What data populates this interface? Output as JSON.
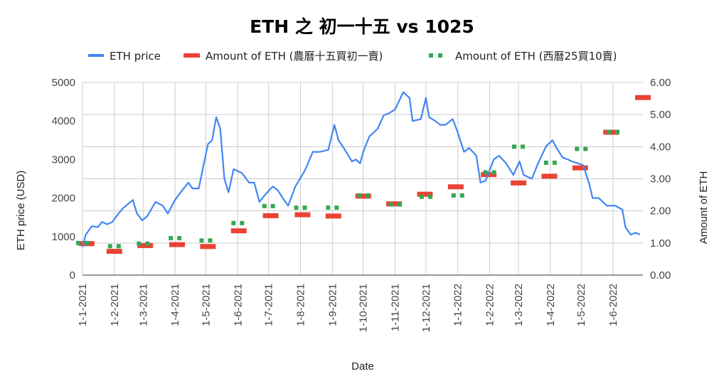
{
  "chart_data": {
    "type": "line",
    "title": "ETH 之 初一十五 vs 1025",
    "xlabel": "Date",
    "ylabel_left": "ETH price (USD)",
    "ylabel_right": "Amount of ETH",
    "ylim_left": [
      0,
      5000
    ],
    "ylim_right": [
      0,
      6
    ],
    "left_ticks": [
      "0",
      "1000",
      "2000",
      "3000",
      "4000",
      "5000"
    ],
    "right_ticks": [
      "0.00",
      "1.00",
      "2.00",
      "3.00",
      "4.00",
      "5.00",
      "6.00"
    ],
    "x_ticks": [
      "1-1-2021",
      "1-2-2021",
      "1-3-2021",
      "1-4-2021",
      "1-5-2021",
      "1-6-2021",
      "1-7-2021",
      "1-8-2021",
      "1-9-2021",
      "1-10-2021",
      "1-11-2021",
      "1-12-2021",
      "1-1-2022",
      "1-2-2022",
      "1-3-2022",
      "1-4-2022",
      "1-5-2022",
      "1-6-2022"
    ],
    "x_range": [
      "2021-01-01",
      "2022-06-30"
    ],
    "grid": true,
    "legend_position": "top",
    "series": [
      {
        "name": "ETH price",
        "type": "line",
        "axis": "left",
        "color": "#4285f4",
        "points": [
          [
            "2021-01-01",
            730
          ],
          [
            "2021-01-04",
            1040
          ],
          [
            "2021-01-10",
            1270
          ],
          [
            "2021-01-16",
            1250
          ],
          [
            "2021-01-20",
            1380
          ],
          [
            "2021-01-25",
            1320
          ],
          [
            "2021-01-30",
            1380
          ],
          [
            "2021-02-05",
            1600
          ],
          [
            "2021-02-10",
            1750
          ],
          [
            "2021-02-19",
            1950
          ],
          [
            "2021-02-23",
            1600
          ],
          [
            "2021-02-28",
            1420
          ],
          [
            "2021-03-05",
            1530
          ],
          [
            "2021-03-13",
            1900
          ],
          [
            "2021-03-20",
            1800
          ],
          [
            "2021-03-25",
            1600
          ],
          [
            "2021-04-01",
            1950
          ],
          [
            "2021-04-05",
            2100
          ],
          [
            "2021-04-14",
            2400
          ],
          [
            "2021-04-18",
            2250
          ],
          [
            "2021-04-24",
            2250
          ],
          [
            "2021-05-03",
            3400
          ],
          [
            "2021-05-07",
            3500
          ],
          [
            "2021-05-11",
            4100
          ],
          [
            "2021-05-15",
            3800
          ],
          [
            "2021-05-19",
            2500
          ],
          [
            "2021-05-23",
            2150
          ],
          [
            "2021-05-28",
            2750
          ],
          [
            "2021-06-05",
            2650
          ],
          [
            "2021-06-12",
            2400
          ],
          [
            "2021-06-17",
            2400
          ],
          [
            "2021-06-22",
            1900
          ],
          [
            "2021-06-28",
            2100
          ],
          [
            "2021-07-05",
            2300
          ],
          [
            "2021-07-10",
            2200
          ],
          [
            "2021-07-16",
            1950
          ],
          [
            "2021-07-20",
            1800
          ],
          [
            "2021-07-27",
            2300
          ],
          [
            "2021-08-05",
            2700
          ],
          [
            "2021-08-13",
            3200
          ],
          [
            "2021-08-20",
            3200
          ],
          [
            "2021-08-28",
            3250
          ],
          [
            "2021-09-03",
            3900
          ],
          [
            "2021-09-07",
            3500
          ],
          [
            "2021-09-12",
            3300
          ],
          [
            "2021-09-20",
            2950
          ],
          [
            "2021-09-24",
            3000
          ],
          [
            "2021-09-28",
            2900
          ],
          [
            "2021-10-01",
            3200
          ],
          [
            "2021-10-07",
            3600
          ],
          [
            "2021-10-15",
            3800
          ],
          [
            "2021-10-21",
            4150
          ],
          [
            "2021-10-26",
            4200
          ],
          [
            "2021-11-01",
            4300
          ],
          [
            "2021-11-09",
            4750
          ],
          [
            "2021-11-15",
            4600
          ],
          [
            "2021-11-18",
            4000
          ],
          [
            "2021-11-26",
            4050
          ],
          [
            "2021-12-01",
            4600
          ],
          [
            "2021-12-04",
            4100
          ],
          [
            "2021-12-10",
            4000
          ],
          [
            "2021-12-15",
            3900
          ],
          [
            "2021-12-20",
            3900
          ],
          [
            "2021-12-27",
            4050
          ],
          [
            "2022-01-01",
            3700
          ],
          [
            "2022-01-07",
            3200
          ],
          [
            "2022-01-12",
            3300
          ],
          [
            "2022-01-19",
            3100
          ],
          [
            "2022-01-23",
            2400
          ],
          [
            "2022-01-28",
            2450
          ],
          [
            "2022-02-05",
            3000
          ],
          [
            "2022-02-10",
            3100
          ],
          [
            "2022-02-17",
            2900
          ],
          [
            "2022-02-24",
            2600
          ],
          [
            "2022-03-02",
            2950
          ],
          [
            "2022-03-06",
            2600
          ],
          [
            "2022-03-14",
            2500
          ],
          [
            "2022-03-20",
            2900
          ],
          [
            "2022-03-28",
            3350
          ],
          [
            "2022-04-03",
            3500
          ],
          [
            "2022-04-07",
            3300
          ],
          [
            "2022-04-13",
            3050
          ],
          [
            "2022-04-18",
            3000
          ],
          [
            "2022-04-22",
            2950
          ],
          [
            "2022-04-28",
            2900
          ],
          [
            "2022-05-03",
            2850
          ],
          [
            "2022-05-09",
            2350
          ],
          [
            "2022-05-12",
            2000
          ],
          [
            "2022-05-18",
            2000
          ],
          [
            "2022-05-26",
            1800
          ],
          [
            "2022-06-03",
            1800
          ],
          [
            "2022-06-10",
            1700
          ],
          [
            "2022-06-13",
            1250
          ],
          [
            "2022-06-18",
            1050
          ],
          [
            "2022-06-23",
            1100
          ],
          [
            "2022-06-27",
            1050
          ]
        ]
      },
      {
        "name": "Amount of ETH (農曆十五買初一賣)",
        "type": "dash",
        "axis": "right",
        "color": "#ea4335",
        "points": [
          [
            "2021-01-05",
            0.98
          ],
          [
            "2021-02-01",
            0.74
          ],
          [
            "2021-03-03",
            0.92
          ],
          [
            "2021-04-03",
            0.95
          ],
          [
            "2021-05-03",
            0.89
          ],
          [
            "2021-06-02",
            1.38
          ],
          [
            "2021-07-03",
            1.85
          ],
          [
            "2021-08-03",
            1.88
          ],
          [
            "2021-09-02",
            1.84
          ],
          [
            "2021-10-01",
            2.46
          ],
          [
            "2021-10-31",
            2.22
          ],
          [
            "2021-11-30",
            2.52
          ],
          [
            "2021-12-30",
            2.75
          ],
          [
            "2022-01-31",
            3.13
          ],
          [
            "2022-03-01",
            2.87
          ],
          [
            "2022-03-31",
            3.08
          ],
          [
            "2022-04-30",
            3.34
          ],
          [
            "2022-05-30",
            4.45
          ],
          [
            "2022-06-30",
            5.53
          ]
        ]
      },
      {
        "name": "Amount of ETH (西曆25買10賣)",
        "type": "dots",
        "axis": "right",
        "color": "#34a853",
        "points": [
          [
            "2021-01-01",
            1.0
          ],
          [
            "2021-02-01",
            0.9
          ],
          [
            "2021-03-01",
            0.98
          ],
          [
            "2021-04-01",
            1.15
          ],
          [
            "2021-05-01",
            1.08
          ],
          [
            "2021-06-01",
            1.62
          ],
          [
            "2021-07-01",
            2.15
          ],
          [
            "2021-08-01",
            2.1
          ],
          [
            "2021-09-01",
            2.1
          ],
          [
            "2021-10-01",
            2.48
          ],
          [
            "2021-11-01",
            2.2
          ],
          [
            "2021-12-01",
            2.44
          ],
          [
            "2022-01-01",
            2.48
          ],
          [
            "2022-02-01",
            3.2
          ],
          [
            "2022-03-01",
            4.0
          ],
          [
            "2022-04-01",
            3.5
          ],
          [
            "2022-05-01",
            3.93
          ],
          [
            "2022-06-01",
            4.46
          ]
        ]
      }
    ]
  }
}
